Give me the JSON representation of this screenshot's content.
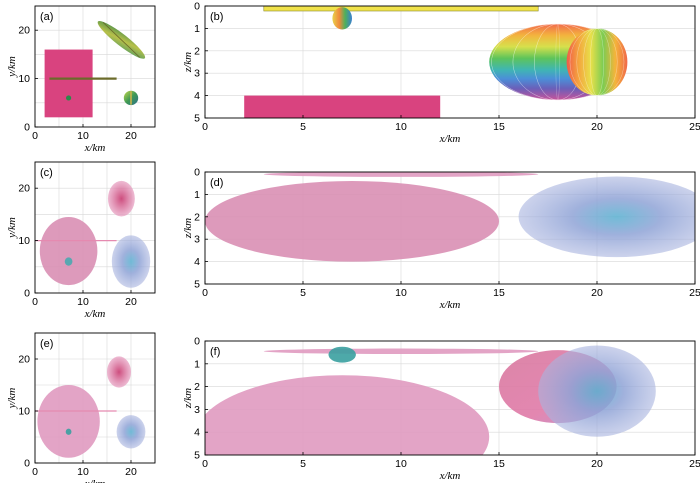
{
  "figure": {
    "panels": [
      {
        "id": "a",
        "label": "(a)",
        "xlabel": "x/km",
        "ylabel": "y/km",
        "xlim": [
          0,
          25
        ],
        "ylim": [
          0,
          25
        ],
        "xticks": [
          0,
          10,
          20
        ],
        "yticks": [
          0,
          10,
          20
        ],
        "y_inverted": false
      },
      {
        "id": "b",
        "label": "(b)",
        "xlabel": "x/km",
        "ylabel": "z/km",
        "xlim": [
          0,
          25
        ],
        "ylim": [
          0,
          5
        ],
        "xticks": [
          0,
          5,
          10,
          15,
          20,
          25
        ],
        "yticks": [
          0,
          1,
          2,
          3,
          4,
          5
        ],
        "y_inverted": true
      },
      {
        "id": "c",
        "label": "(c)",
        "xlabel": "x/km",
        "ylabel": "y/km",
        "xlim": [
          0,
          25
        ],
        "ylim": [
          0,
          25
        ],
        "xticks": [
          0,
          10,
          20
        ],
        "yticks": [
          0,
          10,
          20
        ],
        "y_inverted": false
      },
      {
        "id": "d",
        "label": "(d)",
        "xlabel": "x/km",
        "ylabel": "z/km",
        "xlim": [
          0,
          25
        ],
        "ylim": [
          0,
          5
        ],
        "xticks": [
          0,
          5,
          10,
          15,
          20,
          25
        ],
        "yticks": [
          0,
          1,
          2,
          3,
          4,
          5
        ],
        "y_inverted": true
      },
      {
        "id": "e",
        "label": "(e)",
        "xlabel": "x/km",
        "ylabel": "y/km",
        "xlim": [
          0,
          25
        ],
        "ylim": [
          0,
          25
        ],
        "xticks": [
          0,
          10,
          20
        ],
        "yticks": [
          0,
          10,
          20
        ],
        "y_inverted": false
      },
      {
        "id": "f",
        "label": "(f)",
        "xlabel": "x/km",
        "ylabel": "z/km",
        "xlim": [
          0,
          25
        ],
        "ylim": [
          0,
          5
        ],
        "xticks": [
          0,
          5,
          10,
          15,
          20,
          25
        ],
        "yticks": [
          0,
          1,
          2,
          3,
          4,
          5
        ],
        "y_inverted": true
      }
    ]
  },
  "chart_data": [
    {
      "type": "scatter",
      "panel": "a",
      "title": "",
      "xlabel": "x/km",
      "ylabel": "y/km",
      "xlim": [
        0,
        25
      ],
      "ylim": [
        0,
        25
      ],
      "bodies": [
        {
          "name": "prism",
          "shape": "rect",
          "x": [
            2,
            12
          ],
          "y": [
            2,
            16
          ],
          "color": "#d9437f"
        },
        {
          "name": "thin rod",
          "shape": "line",
          "x": [
            3,
            17
          ],
          "y": [
            10,
            10
          ],
          "color": "#6b6b2a"
        },
        {
          "name": "small sphere",
          "shape": "dot",
          "cx": 7,
          "cy": 6,
          "color": "#2a8a4a"
        },
        {
          "name": "inclined ellipsoid",
          "shape": "ellipse",
          "cx": 18,
          "cy": 18,
          "rx": 6.2,
          "ry": 1.2,
          "angle_deg": -38,
          "color": "#9aa83a"
        },
        {
          "name": "sphere",
          "shape": "circle",
          "cx": 20,
          "cy": 6,
          "r": 1.5,
          "color": "#4a9a55"
        }
      ]
    },
    {
      "type": "scatter",
      "panel": "b",
      "title": "",
      "xlabel": "x/km",
      "ylabel": "z/km",
      "xlim": [
        0,
        25
      ],
      "ylim": [
        5,
        0
      ],
      "bodies": [
        {
          "name": "thin sheet",
          "shape": "rect",
          "x": [
            3,
            17
          ],
          "z": [
            0,
            0.1
          ],
          "color": "#f0e24a"
        },
        {
          "name": "small sphere",
          "shape": "circle",
          "cx": 7,
          "cz": 0.55,
          "r": 0.5,
          "color": "#f4a640"
        },
        {
          "name": "ellipsoid",
          "shape": "ellipse",
          "cx": 18,
          "cz": 2.5,
          "rx": 3.5,
          "rz": 1.7,
          "color": "#4aa8d8"
        },
        {
          "name": "sphere",
          "shape": "ellipse",
          "cx": 20,
          "cz": 2.5,
          "rx": 1.55,
          "rz": 1.5,
          "color": "#f0b43a"
        },
        {
          "name": "prism",
          "shape": "rect",
          "x": [
            2,
            12
          ],
          "z": [
            4,
            5
          ],
          "color": "#d9437f"
        }
      ]
    },
    {
      "type": "heatmap",
      "panel": "c",
      "title": "",
      "xlabel": "x/km",
      "ylabel": "y/km",
      "xlim": [
        0,
        25
      ],
      "ylim": [
        0,
        25
      ],
      "anomalies": [
        {
          "cx": 7,
          "cy": 8,
          "rx": 6,
          "ry": 6.5,
          "color": "#d98fb4"
        },
        {
          "cx": 18,
          "cy": 18,
          "rx": 2.8,
          "ry": 3.4,
          "color": "#d8528a"
        },
        {
          "cx": 20,
          "cy": 6,
          "rx": 4,
          "ry": 5,
          "color": "#8fa3d6"
        },
        {
          "cx": 7,
          "cy": 6,
          "rx": 0.8,
          "ry": 0.8,
          "color": "#4aa8b0"
        }
      ]
    },
    {
      "type": "heatmap",
      "panel": "d",
      "title": "",
      "xlabel": "x/km",
      "ylabel": "z/km",
      "xlim": [
        0,
        25
      ],
      "ylim": [
        5,
        0
      ],
      "anomalies": [
        {
          "cx": 7.5,
          "cz": 2.2,
          "rx": 7.5,
          "rz": 1.8,
          "color": "#d98fb4"
        },
        {
          "cx": 21,
          "cz": 2,
          "rx": 5,
          "rz": 1.8,
          "color": "#8fa3d6"
        },
        {
          "cx": 10,
          "cz": 0.1,
          "rx": 7,
          "rz": 0.12,
          "color": "#e09ac0"
        }
      ]
    },
    {
      "type": "heatmap",
      "panel": "e",
      "title": "",
      "xlabel": "x/km",
      "ylabel": "y/km",
      "xlim": [
        0,
        25
      ],
      "ylim": [
        0,
        25
      ],
      "anomalies": [
        {
          "cx": 7,
          "cy": 8,
          "rx": 6.5,
          "ry": 7,
          "color": "#e09ac0"
        },
        {
          "cx": 17.5,
          "cy": 17.5,
          "rx": 2.5,
          "ry": 3,
          "color": "#d8528a"
        },
        {
          "cx": 20,
          "cy": 6,
          "rx": 3,
          "ry": 3.2,
          "color": "#8fa3d6"
        },
        {
          "cx": 7,
          "cy": 6,
          "rx": 0.6,
          "ry": 0.6,
          "color": "#3aa0a0"
        }
      ]
    },
    {
      "type": "heatmap",
      "panel": "f",
      "title": "",
      "xlabel": "x/km",
      "ylabel": "z/km",
      "xlim": [
        0,
        25
      ],
      "ylim": [
        5,
        0
      ],
      "anomalies": [
        {
          "cx": 7,
          "cz": 4.2,
          "rx": 7.5,
          "rz": 2.7,
          "color": "#e09ac0"
        },
        {
          "cx": 18,
          "cz": 2,
          "rx": 3,
          "rz": 1.6,
          "color": "#e07aa8"
        },
        {
          "cx": 20,
          "cz": 2.2,
          "rx": 3,
          "rz": 2,
          "color": "#8fa3d6"
        },
        {
          "cx": 10,
          "cz": 0.45,
          "rx": 7,
          "rz": 0.12,
          "color": "#e09ac0"
        },
        {
          "cx": 7,
          "cz": 0.6,
          "rx": 0.7,
          "rz": 0.35,
          "color": "#3aa0a0"
        }
      ]
    }
  ]
}
